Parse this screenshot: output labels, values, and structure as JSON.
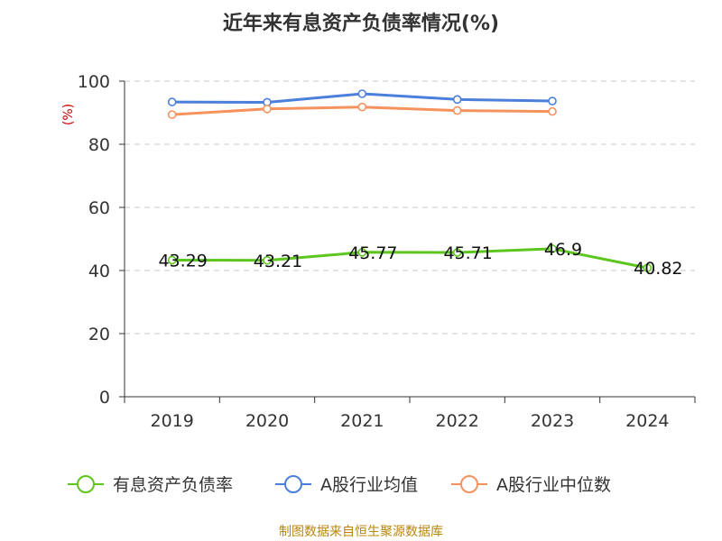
{
  "chart_data": {
    "type": "line",
    "title": "近年来有息资产负债率情况(%)",
    "ylabel": "(%)",
    "xlabel": "",
    "categories": [
      "2019",
      "2020",
      "2021",
      "2022",
      "2023",
      "2024"
    ],
    "y_ticks": [
      "0",
      "20",
      "40",
      "60",
      "80",
      "100"
    ],
    "ylim": [
      0,
      100
    ],
    "grid": true,
    "legend_position": "bottom",
    "series": [
      {
        "name": "有息资产负债率",
        "color": "#5cc61f",
        "values": [
          43.29,
          43.21,
          45.77,
          45.71,
          46.9,
          40.82
        ],
        "labels": [
          "43.29",
          "43.21",
          "45.77",
          "45.71",
          "46.9",
          "40.82"
        ]
      },
      {
        "name": "A股行业均值",
        "color": "#4a7fdb",
        "values": [
          93.4,
          93.3,
          96.0,
          94.2,
          93.7,
          null
        ]
      },
      {
        "name": "A股行业中位数",
        "color": "#f5925e",
        "values": [
          89.4,
          91.2,
          91.8,
          90.7,
          90.4,
          null
        ]
      }
    ]
  },
  "ylabel_color": "#cc0000",
  "source": {
    "text": "制图数据来自恒生聚源数据库",
    "color": "#b8860b"
  }
}
